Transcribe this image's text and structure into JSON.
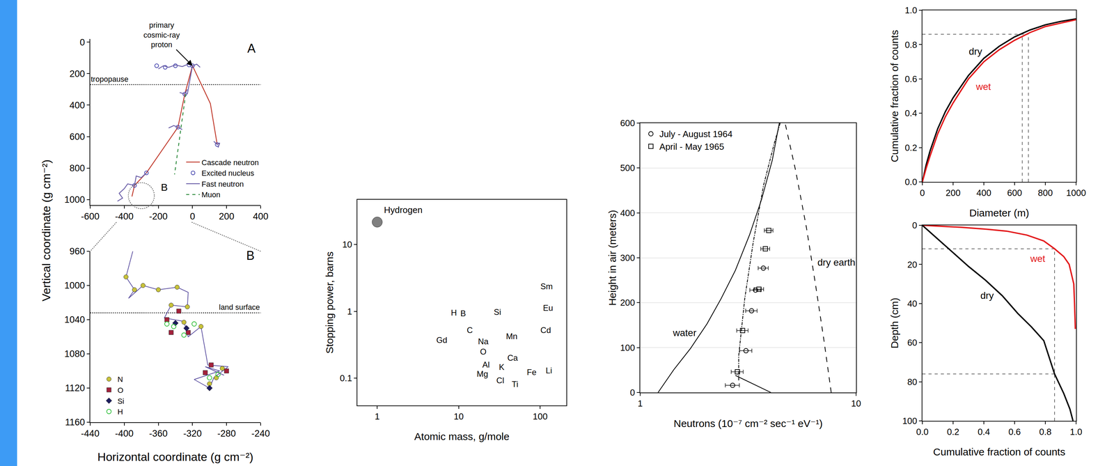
{
  "chart_data": [
    {
      "type": "line",
      "y_label": "Vertical coordinate (g cm⁻²)",
      "xlim": [
        -600,
        400
      ],
      "ylim": [
        1035,
        -20
      ],
      "xticks": [
        -600,
        -400,
        -200,
        0,
        200,
        400
      ],
      "yticks": [
        0,
        200,
        400,
        600,
        800,
        1000
      ],
      "legend": "bottom right",
      "series": [
        {
          "name": "Cascade neutron",
          "color": "#c0392b",
          "line_style": "solid",
          "x": [
            0,
            -45,
            -85,
            -270,
            -340,
            -355,
            null,
            0,
            105,
            145
          ],
          "y": [
            150,
            330,
            540,
            830,
            910,
            980,
            null,
            150,
            390,
            650
          ]
        },
        {
          "name": "Excited nucleus",
          "color": "#4a4ab0",
          "marker": "circle-open",
          "x": [
            0,
            -45,
            -85,
            145,
            -270,
            -340,
            -210,
            -100,
            -160,
            -20
          ],
          "y": [
            150,
            330,
            540,
            650,
            830,
            910,
            150,
            150,
            160,
            145
          ]
        },
        {
          "name": "Fast neutron",
          "color": "#6b5fa8",
          "line_style": "solid",
          "x": [
            -200,
            -170,
            -140,
            -100,
            -60,
            -25,
            0,
            25,
            45,
            null,
            -75,
            -45,
            -30,
            null,
            -140,
            -110,
            -85,
            -60,
            null,
            125,
            145,
            160,
            150,
            null,
            -270,
            -300,
            -330,
            -340,
            -380,
            -400,
            -430,
            -410,
            -440,
            null,
            0,
            -30
          ],
          "y": [
            170,
            150,
            160,
            145,
            155,
            140,
            150,
            140,
            160,
            null,
            320,
            330,
            300,
            null,
            545,
            530,
            540,
            555,
            null,
            630,
            650,
            640,
            670,
            null,
            830,
            860,
            850,
            910,
            900,
            930,
            960,
            990,
            1010,
            null,
            150,
            330
          ]
        },
        {
          "name": "Muon",
          "color": "#2e8b3e",
          "line_style": "dash",
          "x": [
            -40,
            -105
          ],
          "y": [
            330,
            840
          ]
        }
      ],
      "hlines": [
        {
          "y": 270,
          "x": -600,
          "text": "tropopause",
          "line_style": "dot"
        }
      ],
      "zoom": {
        "text": "B",
        "x": -300,
        "y": 975
      },
      "annotations": [
        {
          "text": "A",
          "x": 345,
          "y": 40
        },
        {
          "text": "primary cosmic-ray proton",
          "x": 0,
          "y": 150,
          "arrow": true
        }
      ]
    },
    {
      "type": "line",
      "x_label": "Horizontal coordinate (g cm⁻²)",
      "xlim": [
        -440,
        -240
      ],
      "ylim": [
        1160,
        960
      ],
      "xticks": [
        -440,
        -400,
        -360,
        -320,
        -280,
        -240
      ],
      "yticks": [
        960,
        1000,
        1040,
        1080,
        1120,
        1160
      ],
      "legend": "bottom left",
      "series": [
        {
          "color": "#5b4fa0",
          "line_style": "solid",
          "x": [
            -390,
            -398,
            -388,
            -395,
            -378,
            -360,
            -338,
            -325,
            -326,
            -345,
            -353,
            -330,
            -325,
            -310,
            -302,
            -278,
            -295,
            -300,
            -318,
            -288,
            -305,
            -283
          ],
          "y": [
            960,
            990,
            1005,
            1015,
            1000,
            1005,
            1002,
            1008,
            1025,
            1023,
            1038,
            1042,
            1060,
            1048,
            1093,
            1095,
            1108,
            1120,
            1110,
            1100,
            1095,
            1105
          ]
        },
        {
          "name": "N",
          "color": "#c8c23a",
          "marker": "circle",
          "x": [
            -398,
            -388,
            -378,
            -360,
            -338,
            -326,
            -345,
            -310,
            -285,
            -300,
            -292,
            -330
          ],
          "y": [
            990,
            1005,
            1000,
            1005,
            1002,
            1025,
            1023,
            1048,
            1097,
            1115,
            1108,
            1043
          ]
        },
        {
          "name": "O",
          "color": "#a3223c",
          "marker": "square",
          "x": [
            -350,
            -336,
            -345,
            -298,
            -280,
            -305,
            -325
          ],
          "y": [
            1040,
            1030,
            1055,
            1093,
            1100,
            1102,
            1055
          ]
        },
        {
          "name": "Si",
          "color": "#1c1c5e",
          "marker": "diamond",
          "x": [
            -327,
            -300,
            -340
          ],
          "y": [
            1050,
            1120,
            1044
          ]
        },
        {
          "name": "H",
          "color": "#2fbf3a",
          "marker": "circle-open",
          "x": [
            -330,
            -342,
            -318,
            -290,
            -300,
            -350
          ],
          "y": [
            1058,
            1048,
            1045,
            1104,
            1108,
            1045
          ]
        }
      ],
      "hlines": [
        {
          "y": 1032,
          "x": -240,
          "text": "land surface",
          "line_style": "dot"
        }
      ],
      "annotations": [
        {
          "text": "B",
          "x": -252,
          "y": 965
        }
      ]
    },
    {
      "type": "scatter",
      "log": true,
      "x_label": "Atomic mass, g/mole",
      "y_label": "Stopping power, barns",
      "xlim": [
        0.57,
        210
      ],
      "ylim": [
        0.039,
        47
      ],
      "xticks": [
        1,
        10,
        100
      ],
      "yticks": [
        0.1,
        1,
        10
      ],
      "series": [
        {
          "color": "#808080",
          "x": [
            1
          ],
          "y": [
            21.7
          ],
          "labels": [
            "Hydrogen"
          ]
        },
        {
          "type": "text",
          "color": "#000000",
          "x": [
            9.5,
            10.5,
            6.2,
            13.7,
            20,
            20,
            29.9,
            44.8,
            39.6,
            24,
            33.7,
            23,
            32.4,
            44.8,
            90,
            117,
            120,
            125,
            117
          ],
          "y": [
            0.93,
            0.91,
            0.36,
            0.51,
            0.3,
            0.28,
            0.95,
            0.41,
            0.17,
            0.154,
            0.143,
            0.112,
            0.104,
            0.079,
            0.12,
            0.126,
            2.3,
            1.1,
            0.51
          ],
          "labels": [
            "H",
            "B",
            "Gd",
            "C",
            "Na",
            "O",
            "Si",
            "Mn",
            "Ca",
            "Al",
            "K",
            "Mg",
            "Cl",
            "Ti",
            "Fe",
            "Li",
            "Sm",
            "Eu",
            "Cd"
          ]
        }
      ]
    },
    {
      "type": "line",
      "log": "x",
      "grid": true,
      "legend": "top left",
      "x_label": "Neutrons (10⁻⁷ cm⁻² sec⁻¹ eV⁻¹)",
      "y_label": "Height in air (meters)",
      "xlim": [
        1,
        10
      ],
      "ylim": [
        0,
        600
      ],
      "xticks": [
        1,
        10
      ],
      "yticks": [
        0,
        100,
        200,
        300,
        400,
        500,
        600
      ],
      "series": [
        {
          "color": "#000000",
          "line_style": "solid",
          "x": [
            1.21,
            1.43,
            1.71,
            2.04,
            2.37,
            2.76,
            3.21,
            3.65,
            4.09,
            4.41
          ],
          "y": [
            0,
            50.6,
            98,
            153,
            209,
            272,
            351,
            430,
            517,
            600
          ]
        },
        {
          "color": "#000000",
          "line_style": "longdash",
          "x": [
            7.67,
            7.11,
            6.49,
            5.89,
            5.25,
            4.69
          ],
          "y": [
            0,
            114,
            240,
            367,
            494,
            600
          ]
        },
        {
          "color": "#000000",
          "line_style": "dashdot",
          "x": [
            2.86,
            2.86,
            3.05,
            3.34,
            3.73,
            4.19,
            4.45
          ],
          "y": [
            27,
            82,
            209,
            335,
            462,
            557,
            600
          ]
        },
        {
          "color": "#000000",
          "line_style": "solid",
          "x": [
            2.76,
            4.03
          ],
          "y": [
            38,
            0
          ]
        },
        {
          "name": "July - August 1964",
          "type": "scatter",
          "color": "#000000",
          "marker": "circle-open",
          "x": [
            3.72,
            3.42,
            3.28,
            3.09,
            2.68
          ],
          "y": [
            277,
            228,
            182,
            93,
            16
          ],
          "x_error": [
            0.2,
            0.2,
            0.2,
            0.2,
            0.2
          ]
        },
        {
          "name": "April - May 1965",
          "type": "scatter",
          "color": "#000000",
          "marker": "square-open",
          "x": [
            3.94,
            3.8,
            3.55,
            2.98,
            2.82
          ],
          "y": [
            361,
            320,
            230,
            138,
            46
          ],
          "x_error": [
            0.18,
            0.18,
            0.18,
            0.18,
            0.18
          ]
        }
      ],
      "annotations": [
        {
          "text": "water",
          "x": 1.6,
          "y": 133
        },
        {
          "text": "dry earth",
          "x": 8.1,
          "y": 290
        }
      ]
    },
    {
      "type": "line",
      "x_label": "Diameter (m)",
      "y_label": "Cumulative fraction of counts",
      "xlim": [
        0,
        1000
      ],
      "ylim": [
        0,
        1
      ],
      "xticks": [
        0,
        200,
        400,
        600,
        800,
        1000
      ],
      "yticks": [
        {
          "value": 0,
          "label": "0.0"
        },
        0.2,
        0.4,
        0.6,
        0.8,
        {
          "value": 1,
          "label": "1.0"
        }
      ],
      "series": [
        {
          "color": "#000000",
          "x": [
            0,
            25,
            50,
            100,
            150,
            200,
            300,
            400,
            500,
            600,
            700,
            800,
            900,
            1000
          ],
          "y": [
            0,
            0.1,
            0.18,
            0.31,
            0.41,
            0.49,
            0.62,
            0.72,
            0.79,
            0.845,
            0.885,
            0.915,
            0.935,
            0.95
          ]
        },
        {
          "color": "#e31a1c",
          "x": [
            0,
            25,
            50,
            100,
            150,
            200,
            300,
            400,
            500,
            600,
            700,
            800,
            900,
            1000
          ],
          "y": [
            0,
            0.08,
            0.15,
            0.28,
            0.38,
            0.46,
            0.6,
            0.7,
            0.77,
            0.825,
            0.87,
            0.905,
            0.925,
            0.945
          ]
        }
      ],
      "reference_lines": {
        "x": [
          650,
          690
        ],
        "y": [
          0.86
        ]
      },
      "annotations": [
        {
          "text": "dry",
          "x": 346,
          "y": 0.76
        },
        {
          "text": "wet",
          "x": 397,
          "y": 0.555,
          "color": "#e31a1c"
        }
      ]
    },
    {
      "type": "line",
      "x_label": "Cumulative fraction of counts",
      "y_label": "Depth (cm)",
      "xlim": [
        0,
        1
      ],
      "ylim": [
        100,
        0
      ],
      "xticks": [
        {
          "value": 0,
          "label": "0.0"
        },
        0.2,
        0.4,
        0.6,
        0.8,
        {
          "value": 1,
          "label": "1.0"
        }
      ],
      "yticks": [
        0,
        20,
        40,
        60,
        80,
        100
      ],
      "series": [
        {
          "color": "#e31a1c",
          "x": [
            0,
            0.25,
            0.42,
            0.55,
            0.68,
            0.79,
            0.86,
            0.92,
            0.955,
            0.985,
            0.99,
            0.995,
            0.995
          ],
          "y": [
            0,
            1,
            2,
            3,
            5,
            8,
            12,
            16,
            20,
            30,
            40,
            50,
            53
          ]
        },
        {
          "color": "#000000",
          "x": [
            0,
            0.1,
            0.2,
            0.3,
            0.41,
            0.52,
            0.62,
            0.71,
            0.79,
            0.86,
            0.92,
            0.96,
            0.98
          ],
          "y": [
            0,
            7,
            14,
            21,
            28,
            36,
            45,
            52,
            59,
            76,
            86,
            94,
            100
          ]
        }
      ],
      "reference_lines": {
        "x": [
          0.86
        ],
        "y": [
          12,
          76
        ]
      },
      "annotations": [
        {
          "text": "wet",
          "x": 0.75,
          "y": 17,
          "color": "#e31a1c"
        },
        {
          "text": "dry",
          "x": 0.42,
          "y": 36
        }
      ]
    }
  ]
}
